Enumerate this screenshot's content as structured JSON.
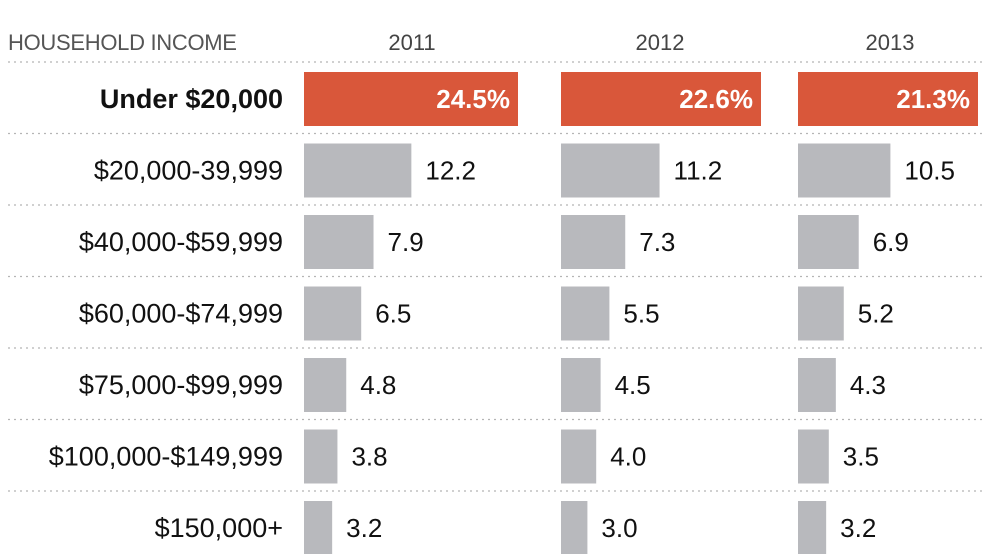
{
  "chart_data": {
    "type": "bar",
    "category_header": "HOUSEHOLD INCOME",
    "categories": [
      "Under $20,000",
      "$20,000-39,999",
      "$40,000-$59,999",
      "$60,000-$74,999",
      "$75,000-$99,999",
      "$100,000-$149,999",
      "$150,000+"
    ],
    "highlight_index": 0,
    "series": [
      {
        "name": "2011",
        "values": [
          24.5,
          12.2,
          7.9,
          6.5,
          4.8,
          3.8,
          3.2
        ],
        "labels": [
          "24.5%",
          "12.2",
          "7.9",
          "6.5",
          "4.8",
          "3.8",
          "3.2"
        ]
      },
      {
        "name": "2012",
        "values": [
          22.6,
          11.2,
          7.3,
          5.5,
          4.5,
          4.0,
          3.0
        ],
        "labels": [
          "22.6%",
          "11.2",
          "7.3",
          "5.5",
          "4.5",
          "4.0",
          "3.0"
        ]
      },
      {
        "name": "2013",
        "values": [
          21.3,
          10.5,
          6.9,
          5.2,
          4.3,
          3.5,
          3.2
        ],
        "labels": [
          "21.3%",
          "10.5",
          "6.9",
          "5.2",
          "4.3",
          "3.5",
          "3.2"
        ]
      }
    ],
    "colors": {
      "highlight": "#d9573a",
      "bar": "#b8b9bd"
    }
  }
}
